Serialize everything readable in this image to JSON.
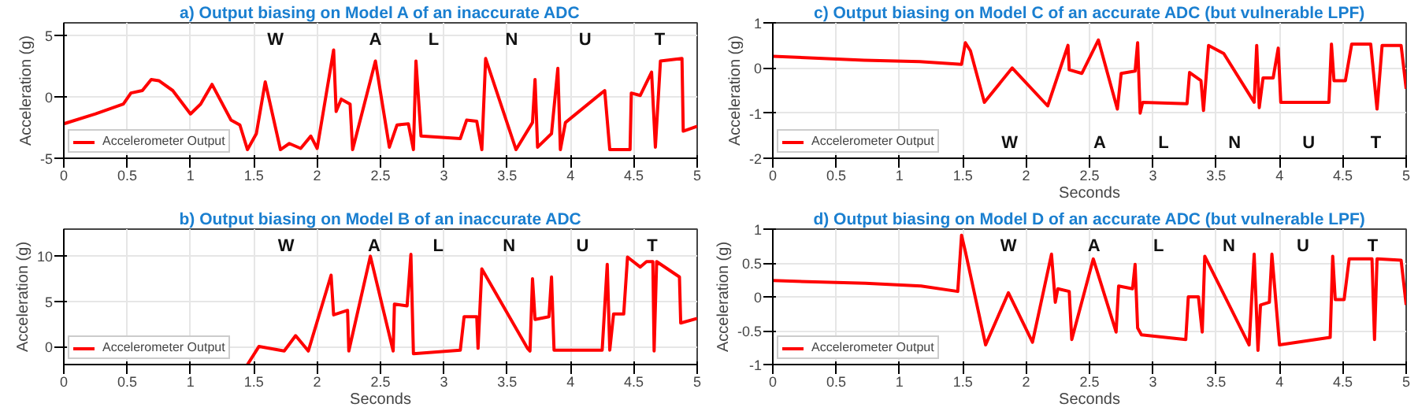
{
  "chart_data": [
    {
      "type": "line",
      "title": "a) Output biasing on Model A of an inaccurate ADC",
      "ylabel": "Acceleration (g)",
      "xlim": [
        0,
        5
      ],
      "ylim": [
        -5,
        6
      ],
      "xticks": [
        0,
        0.5,
        1,
        1.5,
        2,
        2.5,
        3,
        3.5,
        4,
        4.5,
        5
      ],
      "yticks": [
        -5,
        0,
        5
      ],
      "grid": true,
      "legend": "bottom left",
      "x": [
        0,
        0.25,
        0.47,
        0.53,
        0.62,
        0.69,
        0.75,
        0.86,
        1.0,
        1.08,
        1.17,
        1.32,
        1.39,
        1.45,
        1.52,
        1.59,
        1.71,
        1.78,
        1.87,
        1.95,
        2.0,
        2.13,
        2.15,
        2.19,
        2.26,
        2.28,
        2.46,
        2.57,
        2.63,
        2.72,
        2.76,
        2.78,
        2.82,
        3.13,
        3.18,
        3.26,
        3.3,
        3.33,
        3.57,
        3.7,
        3.72,
        3.74,
        3.85,
        3.9,
        3.92,
        3.96,
        4.27,
        4.31,
        4.47,
        4.48,
        4.55,
        4.64,
        4.67,
        4.71,
        4.88,
        4.89,
        5.0
      ],
      "series": [
        {
          "name": "Accelerometer Output",
          "color": "#ff0000",
          "values": [
            -2.2,
            -1.4,
            -0.6,
            0.3,
            0.5,
            1.4,
            1.3,
            0.5,
            -1.4,
            -0.6,
            1.0,
            -1.9,
            -2.3,
            -4.3,
            -3.0,
            1.2,
            -4.3,
            -3.8,
            -4.2,
            -3.2,
            -4.2,
            3.8,
            -1.2,
            -0.2,
            -0.6,
            -4.3,
            2.9,
            -4.1,
            -2.3,
            -2.2,
            -4.3,
            2.9,
            -3.2,
            -3.4,
            -1.9,
            -2.0,
            -4.3,
            3.1,
            -4.3,
            -2.1,
            1.4,
            -4.1,
            -3.0,
            2.3,
            -4.3,
            -2.1,
            0.5,
            -4.3,
            -4.3,
            0.3,
            0.1,
            2.0,
            -4.1,
            2.9,
            3.1,
            -2.8,
            -2.4
          ]
        }
      ],
      "annotations": [
        "W",
        "A",
        "L",
        "N",
        "U",
        "T"
      ]
    },
    {
      "type": "line",
      "title": "c) Output biasing on Model C of an accurate ADC (but vulnerable LPF)",
      "ylabel": "Acceleration (g)",
      "xlabel": "Seconds",
      "xlim": [
        0,
        5
      ],
      "ylim": [
        -2,
        1
      ],
      "xticks": [
        0,
        0.5,
        1,
        1.5,
        2,
        2.5,
        3,
        3.5,
        4,
        4.5,
        5
      ],
      "yticks": [
        -2,
        -1,
        0,
        1
      ],
      "grid": true,
      "legend": "bottom left",
      "x": [
        0,
        0.72,
        1.16,
        1.49,
        1.52,
        1.56,
        1.67,
        1.89,
        2.17,
        2.33,
        2.34,
        2.44,
        2.57,
        2.72,
        2.75,
        2.86,
        2.88,
        2.9,
        2.92,
        3.27,
        3.29,
        3.38,
        3.4,
        3.44,
        3.56,
        3.8,
        3.82,
        3.84,
        3.87,
        3.95,
        3.99,
        4.01,
        4.39,
        4.41,
        4.43,
        4.52,
        4.57,
        4.72,
        4.77,
        4.81,
        4.96,
        5.0
      ],
      "series": [
        {
          "name": "Accelerometer Output",
          "color": "#ff0000",
          "values": [
            0.26,
            0.17,
            0.14,
            0.08,
            0.56,
            0.38,
            -0.76,
            0,
            -0.84,
            0.5,
            -0.04,
            -0.12,
            0.62,
            -0.91,
            -0.12,
            -0.07,
            0.56,
            -1.0,
            -0.76,
            -0.79,
            -0.1,
            -0.28,
            -0.94,
            0.5,
            0.32,
            -0.76,
            0.5,
            -0.88,
            -0.22,
            -0.22,
            0.44,
            -0.76,
            -0.76,
            0.53,
            -0.28,
            -0.28,
            0.53,
            0.53,
            -0.91,
            0.5,
            0.5,
            -0.46
          ]
        }
      ],
      "annotations": [
        "W",
        "A",
        "L",
        "N",
        "U",
        "T"
      ]
    },
    {
      "type": "line",
      "title": "b) Output biasing on Model B of an inaccurate ADC",
      "ylabel": "Acceleration (g)",
      "xlabel": "Seconds",
      "xlim": [
        0,
        5
      ],
      "ylim": [
        -2,
        13
      ],
      "xticks": [
        0,
        0.5,
        1,
        1.5,
        2,
        2.5,
        3,
        3.5,
        4,
        4.5,
        5
      ],
      "yticks": [
        0,
        5,
        10
      ],
      "grid": true,
      "legend": "bottom left",
      "x": [
        1.45,
        1.54,
        1.74,
        1.83,
        1.93,
        2.11,
        2.13,
        2.24,
        2.25,
        2.42,
        2.6,
        2.61,
        2.71,
        2.74,
        2.76,
        3.13,
        3.16,
        3.26,
        3.27,
        3.3,
        3.66,
        3.68,
        3.7,
        3.72,
        3.83,
        3.85,
        3.87,
        4.25,
        4.29,
        4.31,
        4.34,
        4.42,
        4.45,
        4.55,
        4.6,
        4.65,
        4.66,
        4.68,
        4.86,
        4.87,
        5.0
      ],
      "series": [
        {
          "name": "Accelerometer Output",
          "color": "#ff0000",
          "values": [
            -2.0,
            0,
            -0.5,
            1.2,
            -0.5,
            7.9,
            3.5,
            4.0,
            -0.5,
            10,
            -0.5,
            4.7,
            4.5,
            10.2,
            -0.8,
            -0.4,
            3.3,
            3.3,
            -0.2,
            8.6,
            -0.2,
            -0.5,
            7.5,
            3.0,
            3.3,
            7.7,
            -0.4,
            -0.4,
            9.1,
            -0.4,
            3.6,
            3.6,
            9.9,
            8.8,
            9.4,
            9.4,
            -0.5,
            9.4,
            7.7,
            2.6,
            3.1
          ]
        }
      ],
      "annotations": [
        "W",
        "A",
        "L",
        "N",
        "U",
        "T"
      ]
    },
    {
      "type": "line",
      "title": "d) Output biasing on Model D of an accurate ADC (but vulnerable LPF)",
      "ylabel": "Acceleration (g)",
      "xlabel": "Seconds",
      "xlim": [
        0,
        5
      ],
      "ylim": [
        -1,
        1
      ],
      "xticks": [
        0,
        0.5,
        1,
        1.5,
        2,
        2.5,
        3,
        3.5,
        4,
        4.5,
        5
      ],
      "yticks": [
        -1,
        -0.5,
        0,
        0.5,
        1
      ],
      "grid": true,
      "legend": "bottom left",
      "x": [
        0,
        0.73,
        1.17,
        1.46,
        1.49,
        1.52,
        1.68,
        1.86,
        2.05,
        2.2,
        2.23,
        2.25,
        2.34,
        2.36,
        2.53,
        2.71,
        2.73,
        2.84,
        2.86,
        2.88,
        2.91,
        3.26,
        3.28,
        3.36,
        3.39,
        3.41,
        3.76,
        3.8,
        3.83,
        3.85,
        3.92,
        3.94,
        4.0,
        4.4,
        4.42,
        4.44,
        4.51,
        4.55,
        4.73,
        4.75,
        4.77,
        4.96,
        5.0
      ],
      "series": [
        {
          "name": "Accelerometer Output",
          "color": "#ff0000",
          "values": [
            0.24,
            0.2,
            0.16,
            0.08,
            0.91,
            0.67,
            -0.71,
            0.06,
            -0.67,
            0.63,
            -0.08,
            0.12,
            0.08,
            -0.63,
            0.56,
            -0.52,
            0.16,
            0.12,
            0.48,
            -0.46,
            -0.56,
            -0.63,
            0,
            0,
            -0.52,
            0.6,
            -0.71,
            0.63,
            -0.79,
            -0.12,
            -0.08,
            0.63,
            -0.71,
            -0.6,
            0.6,
            -0.04,
            -0.04,
            0.56,
            0.56,
            -0.63,
            0.56,
            0.54,
            -0.12
          ]
        }
      ],
      "annotations": [
        "W",
        "A",
        "L",
        "N",
        "U",
        "T"
      ]
    }
  ]
}
